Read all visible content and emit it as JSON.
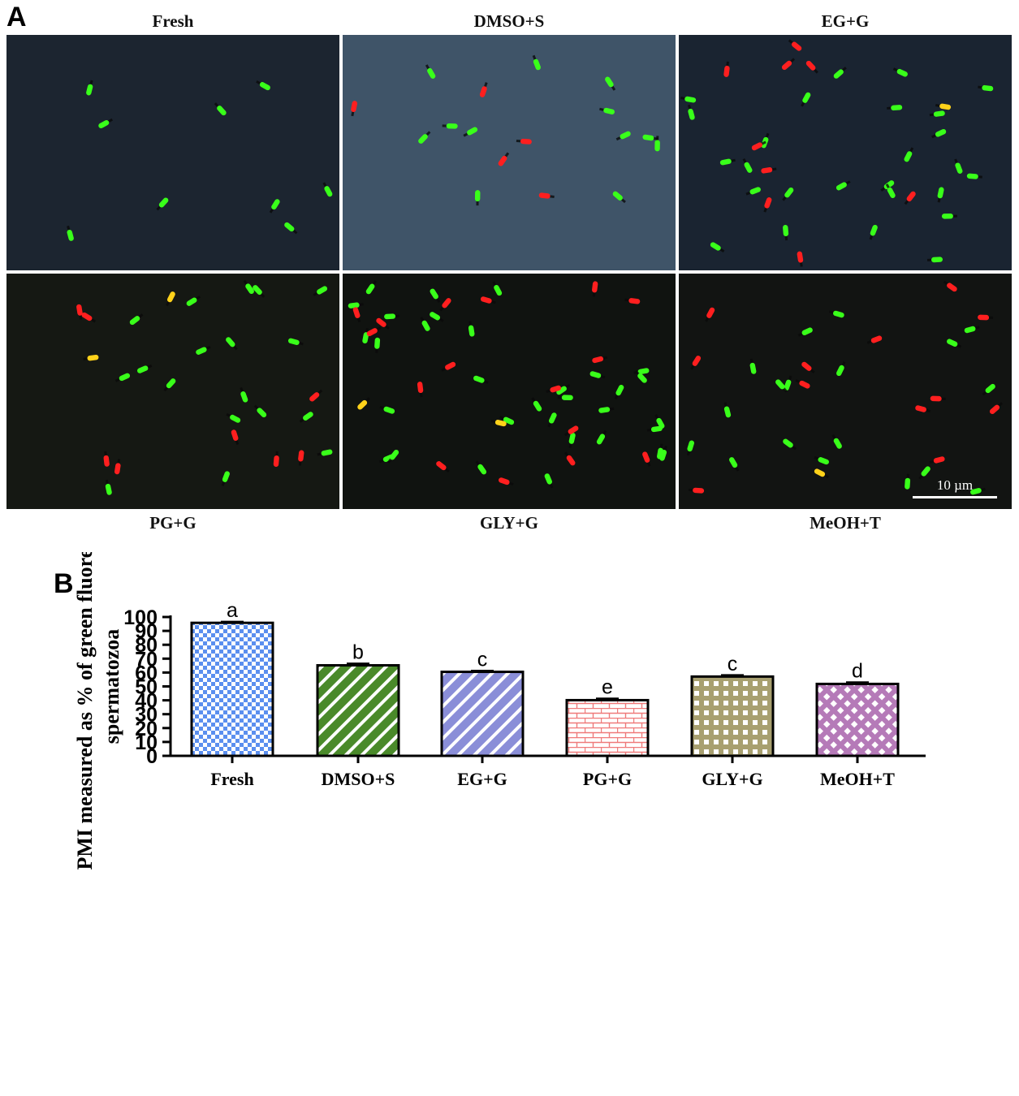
{
  "figure": {
    "panel_a_letter": "A",
    "panel_b_letter": "B",
    "scale_bar_label": "10 µm"
  },
  "micrographs": [
    {
      "label": "Fresh",
      "background": "#1c2530",
      "green": 9,
      "red": 0,
      "yellow": 0
    },
    {
      "label": "DMSO+S",
      "background": "#3f5468",
      "green": 12,
      "red": 5,
      "yellow": 0
    },
    {
      "label": "EG+G",
      "background": "#1a2431",
      "green": 26,
      "red": 9,
      "yellow": 1
    },
    {
      "label": "PG+G",
      "background": "#151813",
      "green": 18,
      "red": 8,
      "yellow": 2
    },
    {
      "label": "GLY+G",
      "background": "#101310",
      "green": 32,
      "red": 16,
      "yellow": 2
    },
    {
      "label": "MeOH+T",
      "background": "#121412",
      "green": 18,
      "red": 12,
      "yellow": 1
    }
  ],
  "colors": {
    "sperm_green": "#39ff1a",
    "sperm_red": "#ff1f1f",
    "sperm_yellow": "#ffd21a"
  },
  "chart_data": {
    "type": "bar",
    "categories": [
      "Fresh",
      "DMSO+S",
      "EG+G",
      "PG+G",
      "GLY+G",
      "MeOH+T"
    ],
    "values": [
      95.8,
      65.2,
      60.5,
      40.1,
      57.1,
      51.8
    ],
    "errors": [
      0.6,
      1.1,
      0.6,
      1.0,
      0.9,
      1.0
    ],
    "significance_letters": [
      "a",
      "b",
      "c",
      "e",
      "c",
      "d"
    ],
    "patterns": [
      "checker",
      "diagonal",
      "diagonal",
      "brick",
      "grid",
      "diamond"
    ],
    "colors": [
      "#5b8fef",
      "#4a8a2a",
      "#8a8ed8",
      "#ef7a7a",
      "#a8a070",
      "#b57ab8"
    ],
    "ylabel_line1": "PMI measured as % of green fluorescent",
    "ylabel_line2": "spermatozoa",
    "xlabel": "",
    "ylim": [
      0,
      100
    ],
    "yticks": [
      0,
      10,
      20,
      30,
      40,
      50,
      60,
      70,
      80,
      90,
      100
    ],
    "grid": false
  }
}
